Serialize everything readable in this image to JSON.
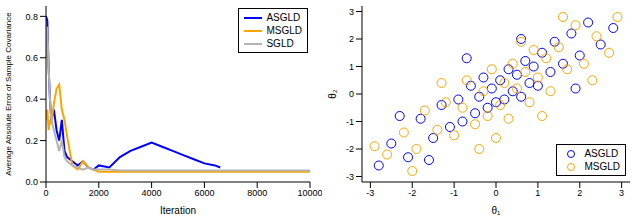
{
  "chart_data": [
    {
      "type": "line",
      "x_label": "Iteration",
      "y_label": "Average Absolute Error of Sample Covariance",
      "x": [
        0,
        50,
        100,
        150,
        200,
        300,
        400,
        500,
        600,
        700,
        800,
        1000,
        1200,
        1400,
        1600,
        1800,
        2000,
        2400,
        2800,
        3200,
        3600,
        4000,
        4400,
        4800,
        5200,
        5600,
        6000,
        6400,
        6600,
        7000,
        8000,
        9000,
        10000
      ],
      "series": [
        {
          "name": "ASGLD",
          "color": "#0000ff",
          "values": [
            0.8,
            0.78,
            0.55,
            0.4,
            0.3,
            0.35,
            0.25,
            0.2,
            0.3,
            0.15,
            0.12,
            0.1,
            0.08,
            0.1,
            0.07,
            0.06,
            0.08,
            0.07,
            0.12,
            0.15,
            0.17,
            0.19,
            0.17,
            0.15,
            0.13,
            0.11,
            0.09,
            0.08,
            0.07,
            null,
            null,
            null,
            null
          ]
        },
        {
          "name": "MSGLD",
          "color": "#ffa500",
          "values": [
            0.3,
            0.35,
            0.25,
            0.3,
            0.28,
            0.38,
            0.45,
            0.47,
            0.35,
            0.3,
            0.22,
            0.08,
            0.06,
            0.1,
            0.07,
            0.06,
            0.05,
            0.05,
            0.05,
            0.05,
            0.05,
            0.05,
            0.05,
            0.05,
            0.05,
            0.05,
            0.05,
            0.05,
            0.05,
            0.05,
            0.05,
            0.05,
            0.05
          ]
        },
        {
          "name": "SGLD",
          "color": "#b3b3b3",
          "values": [
            0.6,
            0.75,
            0.55,
            0.4,
            0.3,
            0.25,
            0.2,
            0.15,
            0.2,
            0.12,
            0.1,
            0.08,
            0.07,
            0.06,
            0.07,
            0.06,
            0.06,
            0.06,
            0.055,
            0.055,
            0.055,
            0.055,
            0.055,
            0.055,
            0.055,
            0.055,
            0.055,
            0.055,
            0.055,
            0.055,
            0.055,
            0.055,
            0.055
          ]
        }
      ],
      "xlim": [
        0,
        10000
      ],
      "xticks": [
        0,
        2000,
        4000,
        6000,
        8000,
        10000
      ],
      "ylim": [
        0,
        0.85
      ],
      "yticks": [
        {
          "value": 0,
          "label": "0.0"
        },
        0.2,
        0.4,
        0.6,
        0.8
      ],
      "legend": "top right"
    },
    {
      "type": "scatter",
      "x_label": "θ₁",
      "y_label": "θ₂",
      "series": [
        {
          "name": "ASGLD",
          "color": "#0000ff",
          "marker": "circle",
          "x": [
            -2.5,
            -2.1,
            -1.8,
            -1.5,
            -1.3,
            -1.1,
            -0.9,
            -0.8,
            -0.6,
            -0.5,
            -0.4,
            -0.3,
            -0.2,
            -0.1,
            0.0,
            0.1,
            0.2,
            0.3,
            0.4,
            0.5,
            0.6,
            0.7,
            0.8,
            0.9,
            1.0,
            1.1,
            1.3,
            1.4,
            1.6,
            1.8,
            2.0,
            2.2,
            2.5,
            2.8,
            -2.8,
            -2.3,
            -1.6,
            1.9,
            -0.7,
            0.6
          ],
          "values": [
            -1.8,
            -2.3,
            -0.9,
            -1.6,
            -0.4,
            -1.2,
            -0.2,
            -1.0,
            0.3,
            -0.7,
            -0.1,
            0.6,
            -0.5,
            0.2,
            -0.3,
            0.5,
            -0.2,
            0.9,
            0.1,
            0.7,
            -0.1,
            1.2,
            0.4,
            1.0,
            0.3,
            1.5,
            0.8,
            1.9,
            1.1,
            2.2,
            1.4,
            2.6,
            1.8,
            2.4,
            -2.6,
            -0.8,
            -2.4,
            0.2,
            1.3,
            2.0
          ]
        },
        {
          "name": "MSGLD",
          "color": "#ffa500",
          "marker": "circle",
          "x": [
            -2.6,
            -2.2,
            -1.9,
            -1.7,
            -1.4,
            -1.2,
            -1.0,
            -0.8,
            -0.7,
            -0.5,
            -0.3,
            -0.2,
            -0.1,
            0.1,
            0.2,
            0.3,
            0.4,
            0.5,
            0.7,
            0.8,
            0.9,
            1.0,
            1.2,
            1.3,
            1.5,
            1.7,
            1.9,
            2.1,
            2.4,
            2.7,
            2.9,
            -2.9,
            -1.3,
            0.0,
            1.6,
            -2.0,
            2.3,
            -0.4,
            0.6,
            1.1
          ],
          "values": [
            -2.2,
            -1.4,
            -2.0,
            -0.6,
            -1.3,
            -0.3,
            -1.5,
            -0.5,
            0.5,
            -1.1,
            0.1,
            -0.8,
            0.9,
            -0.4,
            0.4,
            -0.9,
            1.1,
            0.2,
            0.8,
            -0.3,
            1.6,
            0.6,
            1.3,
            0.1,
            1.7,
            0.9,
            2.5,
            1.1,
            2.1,
            1.5,
            2.8,
            -1.9,
            0.4,
            -1.6,
            2.8,
            -2.8,
            0.5,
            -2.0,
            1.9,
            -0.8
          ]
        }
      ],
      "xlim": [
        -3.2,
        3.2
      ],
      "xticks": [
        -3,
        -2,
        -1,
        0,
        1,
        2,
        3
      ],
      "ylim": [
        -3.2,
        3.2
      ],
      "yticks": [
        -3,
        -2,
        -1,
        0,
        1,
        2,
        3
      ],
      "legend": "bottom right"
    }
  ]
}
